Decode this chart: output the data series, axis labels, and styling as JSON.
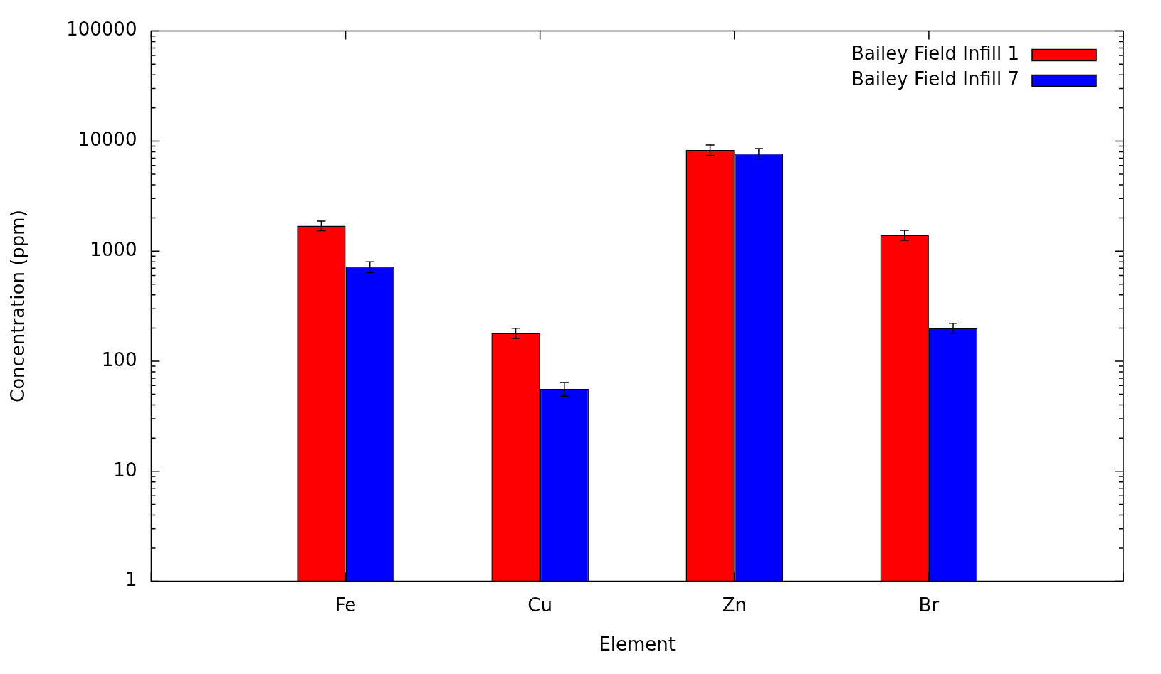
{
  "chart_data": {
    "type": "bar",
    "xlabel": "Element",
    "ylabel": "Concentration (ppm)",
    "categories": [
      null,
      "Fe",
      "Cu",
      "Zn",
      "Br",
      null
    ],
    "series": [
      {
        "name": "Bailey Field Infill 1",
        "color": "#ff0000",
        "values": [
          null,
          1700,
          180,
          8300,
          1400,
          null
        ],
        "errors": [
          null,
          170,
          19,
          900,
          145,
          null
        ]
      },
      {
        "name": "Bailey Field Infill 7",
        "color": "#0000ff",
        "values": [
          null,
          720,
          56,
          7700,
          200,
          null
        ],
        "errors": [
          null,
          80,
          8,
          830,
          21,
          null
        ]
      }
    ],
    "log": "y",
    "ylim": [
      1,
      100000
    ],
    "yticks": [
      1,
      10,
      100,
      1000,
      10000,
      100000
    ],
    "grid": false,
    "legend": "top right"
  }
}
